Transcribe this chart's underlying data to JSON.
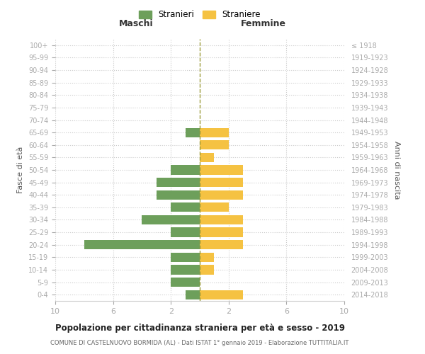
{
  "age_groups": [
    "0-4",
    "5-9",
    "10-14",
    "15-19",
    "20-24",
    "25-29",
    "30-34",
    "35-39",
    "40-44",
    "45-49",
    "50-54",
    "55-59",
    "60-64",
    "65-69",
    "70-74",
    "75-79",
    "80-84",
    "85-89",
    "90-94",
    "95-99",
    "100+"
  ],
  "birth_years": [
    "2014-2018",
    "2009-2013",
    "2004-2008",
    "1999-2003",
    "1994-1998",
    "1989-1993",
    "1984-1988",
    "1979-1983",
    "1974-1978",
    "1969-1973",
    "1964-1968",
    "1959-1963",
    "1954-1958",
    "1949-1953",
    "1944-1948",
    "1939-1943",
    "1934-1938",
    "1929-1933",
    "1924-1928",
    "1919-1923",
    "≤ 1918"
  ],
  "males": [
    1,
    2,
    2,
    2,
    8,
    2,
    4,
    2,
    3,
    3,
    2,
    0,
    0,
    1,
    0,
    0,
    0,
    0,
    0,
    0,
    0
  ],
  "females": [
    3,
    0,
    1,
    1,
    3,
    3,
    3,
    2,
    3,
    3,
    3,
    1,
    2,
    2,
    0,
    0,
    0,
    0,
    0,
    0,
    0
  ],
  "male_color": "#6d9f5b",
  "female_color": "#f5c242",
  "center_line_color": "#9b9b3a",
  "grid_color": "#cccccc",
  "background_color": "#ffffff",
  "title": "Popolazione per cittadinanza straniera per età e sesso - 2019",
  "subtitle": "COMUNE DI CASTELNUOVO BORMIDA (AL) - Dati ISTAT 1° gennaio 2019 - Elaborazione TUTTITALIA.IT",
  "left_header": "Maschi",
  "right_header": "Femmine",
  "ylabel": "Fasce di età",
  "right_ylabel": "Anni di nascita",
  "legend_male": "Stranieri",
  "legend_female": "Straniere",
  "xlim": 10
}
